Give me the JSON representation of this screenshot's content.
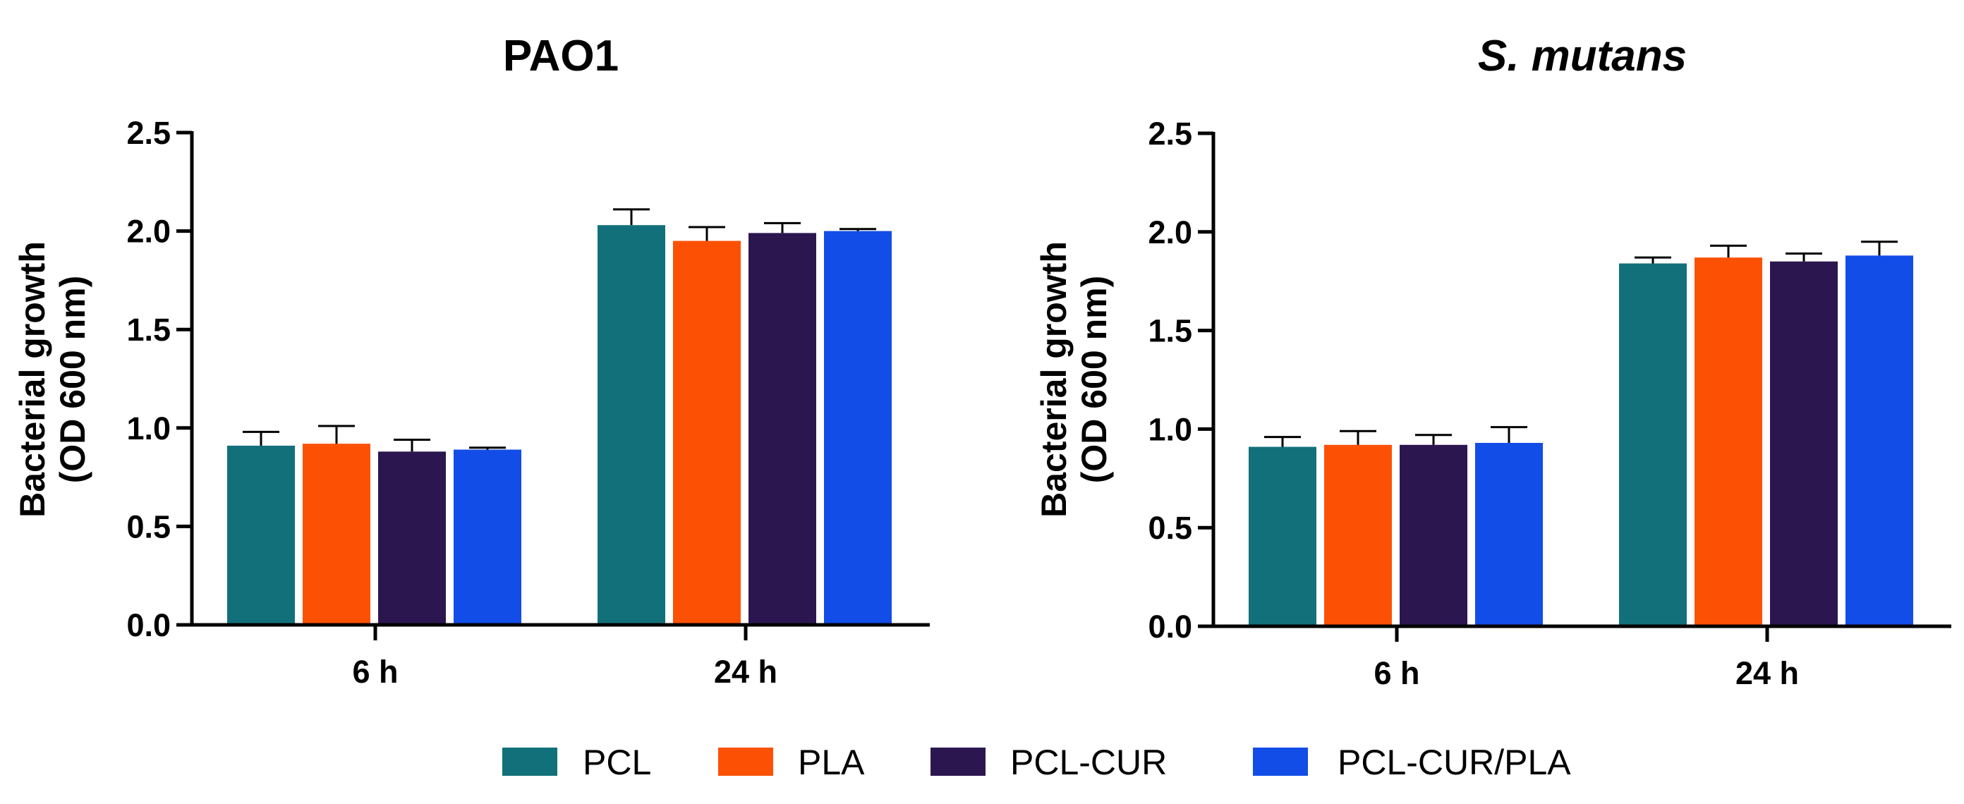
{
  "chart_data": [
    {
      "type": "bar",
      "title": "PAO1",
      "title_italic": false,
      "ylabel_line1": "Bacterial  growth",
      "ylabel_line2": "(OD 600 nm)",
      "xlabel": "",
      "ylim": [
        0,
        2.5
      ],
      "yticks": [
        "0.0",
        "0.5",
        "1.0",
        "1.5",
        "2.0",
        "2.5"
      ],
      "categories": [
        "6 h",
        "24 h"
      ],
      "series": [
        {
          "name": "PCL",
          "values": [
            0.91,
            2.03
          ],
          "errors": [
            0.07,
            0.08
          ]
        },
        {
          "name": "PLA",
          "values": [
            0.92,
            1.95
          ],
          "errors": [
            0.09,
            0.07
          ]
        },
        {
          "name": "PCL-CUR",
          "values": [
            0.88,
            1.99
          ],
          "errors": [
            0.06,
            0.05
          ]
        },
        {
          "name": "PCL-CUR/PLA",
          "values": [
            0.89,
            2.0
          ],
          "errors": [
            0.01,
            0.01
          ]
        }
      ]
    },
    {
      "type": "bar",
      "title": "S. mutans",
      "title_italic": true,
      "ylabel_line1": "Bacterial  growth",
      "ylabel_line2": "(OD 600 nm)",
      "xlabel": "",
      "ylim": [
        0,
        2.5
      ],
      "yticks": [
        "0.0",
        "0.5",
        "1.0",
        "1.5",
        "2.0",
        "2.5"
      ],
      "categories": [
        "6 h",
        "24 h"
      ],
      "series": [
        {
          "name": "PCL",
          "values": [
            0.91,
            1.84
          ],
          "errors": [
            0.05,
            0.03
          ]
        },
        {
          "name": "PLA",
          "values": [
            0.92,
            1.87
          ],
          "errors": [
            0.07,
            0.06
          ]
        },
        {
          "name": "PCL-CUR",
          "values": [
            0.92,
            1.85
          ],
          "errors": [
            0.05,
            0.04
          ]
        },
        {
          "name": "PCL-CUR/PLA",
          "values": [
            0.93,
            1.88
          ],
          "errors": [
            0.08,
            0.07
          ]
        }
      ]
    }
  ],
  "legend": [
    {
      "name": "PCL",
      "color": "#12707A"
    },
    {
      "name": "PLA",
      "color": "#FC5104"
    },
    {
      "name": "PCL-CUR",
      "color": "#2C1650"
    },
    {
      "name": "PCL-CUR/PLA",
      "color": "#124DE7"
    }
  ]
}
